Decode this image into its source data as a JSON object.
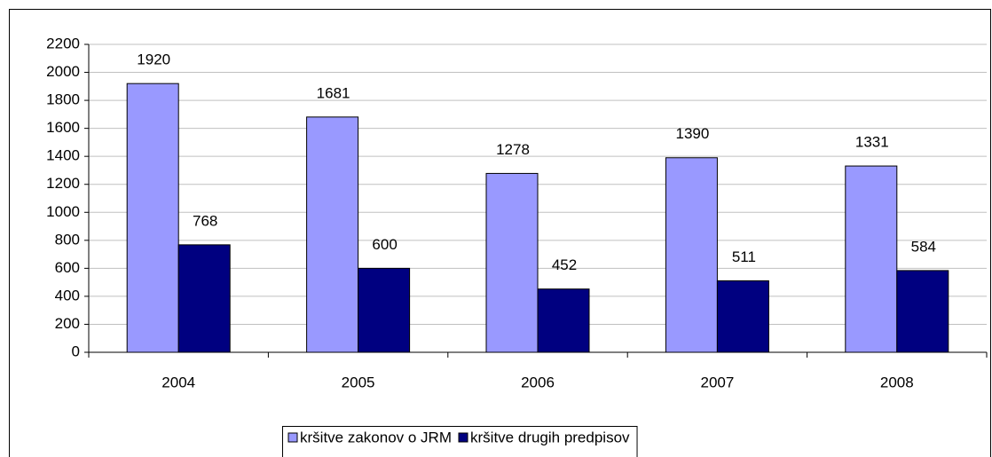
{
  "chart_data": {
    "type": "bar",
    "categories": [
      "2004",
      "2005",
      "2006",
      "2007",
      "2008"
    ],
    "series": [
      {
        "name": "kršitve zakonov o JRM",
        "color": "#9999ff",
        "values": [
          1920,
          1681,
          1278,
          1390,
          1331
        ]
      },
      {
        "name": "kršitve drugih predpisov",
        "color": "#000080",
        "values": [
          768,
          600,
          452,
          511,
          584
        ]
      }
    ],
    "ylim": [
      0,
      2200
    ],
    "yticks": [
      0,
      200,
      400,
      600,
      800,
      1000,
      1200,
      1400,
      1600,
      1800,
      2000,
      2200
    ],
    "grid": true,
    "legend": "bottom"
  }
}
